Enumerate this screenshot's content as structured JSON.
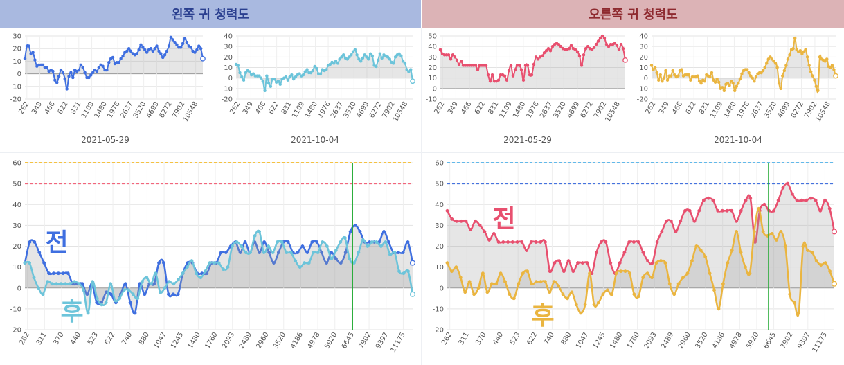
{
  "header": {
    "left_title": "왼쪽 귀 청력도",
    "right_title": "오른쪽 귀 청력도"
  },
  "colors": {
    "left_before": "#3f6fe0",
    "left_after": "#6cc4da",
    "right_before": "#e8506f",
    "right_after": "#eab540",
    "left_ref_orange": "#f5c242",
    "left_ref_red": "#f0506a",
    "right_ref_lightblue": "#62b9ea",
    "right_ref_blue": "#2b5fd9",
    "marker_green": "#22aa33",
    "fill_gray": "#cfcfcf"
  },
  "chart_data": [
    {
      "id": "left-small-1",
      "type": "line",
      "date_label": "2021-05-29",
      "ylim": [
        -20,
        30
      ],
      "yticks": [
        -20,
        -10,
        0,
        10,
        20,
        30
      ],
      "tick_labels": [
        "262",
        "349",
        "466",
        "622",
        "831",
        "1109",
        "1480",
        "1976",
        "2637",
        "3520",
        "4699",
        "6272",
        "7902",
        "10548"
      ],
      "series": [
        {
          "color_key": "left_before",
          "values": [
            12,
            22,
            22,
            16,
            17,
            11,
            6,
            7,
            7,
            7,
            5,
            5,
            2,
            3,
            2,
            -5,
            -7,
            -2,
            3,
            1,
            -4,
            -12,
            -2,
            1,
            -3,
            3,
            2,
            3,
            7,
            5,
            1,
            -3,
            -3,
            -1,
            1,
            3,
            2,
            5,
            7,
            6,
            3,
            3,
            9,
            12,
            13,
            8,
            9,
            9,
            12,
            14,
            17,
            18,
            20,
            18,
            16,
            15,
            16,
            19,
            23,
            21,
            19,
            17,
            19,
            20,
            18,
            20,
            22,
            18,
            16,
            13,
            15,
            18,
            22,
            29,
            27,
            25,
            23,
            21,
            21,
            24,
            28,
            25,
            22,
            21,
            18,
            17,
            19,
            22,
            20,
            12
          ]
        }
      ]
    },
    {
      "id": "left-small-2",
      "type": "line",
      "date_label": "2021-10-04",
      "ylim": [
        -20,
        40
      ],
      "yticks": [
        -20,
        -10,
        0,
        10,
        20,
        30,
        40
      ],
      "tick_labels": [
        "262",
        "349",
        "466",
        "622",
        "831",
        "1109",
        "1480",
        "1976",
        "2637",
        "3520",
        "4699",
        "6272",
        "7902",
        "10548"
      ],
      "series": [
        {
          "color_key": "left_after",
          "values": [
            13,
            12,
            5,
            1,
            -2,
            5,
            7,
            6,
            3,
            4,
            2,
            2,
            2,
            0,
            -3,
            -12,
            2,
            -5,
            -8,
            -1,
            -1,
            -4,
            -3,
            -6,
            -1,
            0,
            1,
            -2,
            1,
            3,
            -1,
            1,
            3,
            4,
            2,
            3,
            6,
            8,
            5,
            5,
            7,
            11,
            9,
            4,
            4,
            8,
            7,
            8,
            12,
            13,
            15,
            14,
            16,
            14,
            18,
            20,
            22,
            19,
            18,
            20,
            22,
            25,
            27,
            22,
            18,
            16,
            19,
            22,
            20,
            18,
            23,
            21,
            12,
            11,
            17,
            23,
            19,
            22,
            21,
            20,
            18,
            15,
            14,
            20,
            22,
            23,
            21,
            16,
            14,
            8,
            6,
            8,
            -3
          ]
        }
      ]
    },
    {
      "id": "right-small-1",
      "type": "line",
      "date_label": "2021-05-29",
      "ylim": [
        -10,
        50
      ],
      "yticks": [
        -10,
        0,
        10,
        20,
        30,
        40,
        50
      ],
      "tick_labels": [
        "262",
        "349",
        "466",
        "622",
        "831",
        "1109",
        "1480",
        "1976",
        "2637",
        "3520",
        "4699",
        "6272",
        "7902",
        "10548"
      ],
      "series": [
        {
          "color_key": "right_before",
          "values": [
            37,
            33,
            32,
            32,
            32,
            28,
            32,
            30,
            27,
            23,
            26,
            22,
            22,
            22,
            22,
            22,
            22,
            22,
            18,
            22,
            22,
            22,
            22,
            13,
            7,
            13,
            7,
            7,
            8,
            13,
            13,
            12,
            8,
            17,
            22,
            12,
            18,
            22,
            22,
            18,
            8,
            22,
            22,
            13,
            13,
            23,
            30,
            28,
            30,
            31,
            34,
            36,
            38,
            36,
            40,
            42,
            43,
            42,
            40,
            38,
            37,
            37,
            38,
            41,
            38,
            37,
            35,
            31,
            22,
            32,
            38,
            40,
            38,
            37,
            39,
            42,
            45,
            48,
            50,
            48,
            42,
            40,
            42,
            42,
            43,
            41,
            37,
            42,
            38,
            27
          ]
        }
      ]
    },
    {
      "id": "right-small-2",
      "type": "line",
      "date_label": "2021-10-04",
      "ylim": [
        -20,
        40
      ],
      "yticks": [
        -20,
        -10,
        0,
        10,
        20,
        30,
        40
      ],
      "tick_labels": [
        "262",
        "349",
        "466",
        "622",
        "831",
        "1109",
        "1480",
        "1976",
        "2637",
        "3520",
        "4699",
        "6272",
        "7902",
        "10548"
      ],
      "series": [
        {
          "color_key": "right_after",
          "values": [
            12,
            8,
            10,
            5,
            -2,
            3,
            -3,
            0,
            7,
            -2,
            2,
            2,
            7,
            3,
            1,
            2,
            7,
            8,
            2,
            3,
            3,
            3,
            -2,
            1,
            1,
            1,
            2,
            -3,
            -5,
            -2,
            -3,
            3,
            2,
            1,
            5,
            -2,
            -4,
            -1,
            -4,
            -10,
            -9,
            -12,
            -6,
            -5,
            -7,
            -3,
            -5,
            -12,
            -8,
            -5,
            -1,
            4,
            7,
            8,
            8,
            5,
            2,
            0,
            -3,
            1,
            4,
            5,
            5,
            7,
            10,
            14,
            18,
            20,
            18,
            16,
            14,
            10,
            -5,
            -10,
            2,
            7,
            12,
            18,
            22,
            27,
            28,
            38,
            27,
            25,
            26,
            23,
            25,
            27,
            20,
            12,
            6,
            2,
            -2,
            -8,
            -12,
            20,
            18,
            17,
            16,
            18,
            11,
            10,
            12,
            8,
            2
          ]
        }
      ]
    },
    {
      "id": "left-big",
      "type": "line",
      "ylim": [
        -20,
        60
      ],
      "yticks": [
        -20,
        -10,
        0,
        10,
        20,
        30,
        40,
        50,
        60
      ],
      "tick_labels": [
        "262",
        "311",
        "370",
        "440",
        "523",
        "622",
        "740",
        "880",
        "1047",
        "1245",
        "1480",
        "1760",
        "2093",
        "2489",
        "2960",
        "3520",
        "4186",
        "4978",
        "5920",
        "6645",
        "7902",
        "9397",
        "11175"
      ],
      "overlay_before": "전",
      "overlay_after": "후",
      "ref_lines": [
        {
          "value": 60,
          "color_key": "left_ref_orange"
        },
        {
          "value": 50,
          "color_key": "left_ref_red"
        }
      ],
      "marker_x_fraction": 0.845,
      "series": [
        {
          "color_key": "left_before",
          "values": [
            12,
            22,
            22,
            17,
            12,
            7,
            7,
            7,
            7,
            7,
            2,
            2,
            2,
            -3,
            2,
            -7,
            -7,
            -2,
            -3,
            -7,
            -3,
            2,
            -7,
            -12,
            2,
            -3,
            2,
            2,
            12,
            12,
            -3,
            -3,
            -3,
            7,
            12,
            12,
            7,
            7,
            7,
            12,
            12,
            17,
            17,
            20,
            22,
            17,
            22,
            17,
            22,
            17,
            22,
            17,
            12,
            17,
            22,
            22,
            17,
            17,
            20,
            17,
            22,
            22,
            17,
            12,
            17,
            14,
            12,
            17,
            27,
            30,
            27,
            22,
            22,
            22,
            22,
            27,
            22,
            17,
            17,
            17,
            22,
            12
          ]
        },
        {
          "color_key": "left_after",
          "values": [
            12,
            12,
            5,
            0,
            -3,
            3,
            2,
            2,
            2,
            2,
            2,
            3,
            2,
            -1,
            -12,
            3,
            -5,
            -8,
            -7,
            2,
            -6,
            -5,
            -1,
            -1,
            -3,
            -5,
            3,
            5,
            2,
            7,
            -2,
            0,
            3,
            2,
            4,
            7,
            10,
            13,
            7,
            5,
            8,
            12,
            12,
            12,
            9,
            10,
            20,
            22,
            20,
            17,
            17,
            25,
            27,
            17,
            20,
            17,
            22,
            22,
            17,
            17,
            13,
            10,
            12,
            12,
            17,
            17,
            22,
            20,
            14,
            18,
            22,
            24,
            14,
            12,
            17,
            23,
            20,
            22,
            22,
            20,
            22,
            16,
            17,
            8,
            7,
            8,
            -3
          ]
        }
      ]
    },
    {
      "id": "right-big",
      "type": "line",
      "ylim": [
        -20,
        60
      ],
      "yticks": [
        -20,
        -10,
        0,
        10,
        20,
        30,
        40,
        50,
        60
      ],
      "tick_labels": [
        "262",
        "311",
        "370",
        "440",
        "523",
        "622",
        "740",
        "880",
        "1047",
        "1245",
        "1480",
        "1760",
        "2093",
        "2489",
        "2960",
        "3520",
        "4186",
        "4978",
        "5920",
        "6645",
        "7902",
        "9397",
        "11175"
      ],
      "overlay_before": "전",
      "overlay_after": "후",
      "ref_lines": [
        {
          "value": 60,
          "color_key": "right_ref_lightblue"
        },
        {
          "value": 50,
          "color_key": "right_ref_blue"
        }
      ],
      "marker_x_fraction": 0.83,
      "series": [
        {
          "color_key": "right_before",
          "values": [
            37,
            33,
            32,
            32,
            32,
            28,
            32,
            30,
            27,
            23,
            26,
            22,
            22,
            22,
            22,
            22,
            22,
            18,
            22,
            22,
            22,
            22,
            8,
            12,
            13,
            8,
            13,
            8,
            12,
            12,
            12,
            7,
            17,
            22,
            22,
            12,
            7,
            12,
            17,
            22,
            22,
            22,
            17,
            13,
            12,
            22,
            27,
            32,
            32,
            27,
            32,
            37,
            37,
            32,
            37,
            42,
            43,
            42,
            37,
            37,
            37,
            37,
            32,
            37,
            42,
            43,
            22,
            37,
            40,
            37,
            37,
            42,
            48,
            50,
            45,
            42,
            42,
            42,
            43,
            42,
            37,
            42,
            38,
            27
          ]
        },
        {
          "color_key": "right_after",
          "values": [
            12,
            8,
            10,
            5,
            -2,
            3,
            -3,
            0,
            7,
            -2,
            2,
            2,
            7,
            3,
            -3,
            -5,
            2,
            7,
            8,
            2,
            3,
            3,
            3,
            -2,
            3,
            1,
            -3,
            -5,
            -2,
            -8,
            -12,
            -8,
            7,
            -8,
            -7,
            -3,
            -1,
            -3,
            7,
            8,
            8,
            7,
            -3,
            -4,
            5,
            7,
            5,
            12,
            13,
            12,
            2,
            -3,
            2,
            5,
            7,
            13,
            20,
            18,
            15,
            7,
            -1,
            -10,
            2,
            12,
            18,
            27,
            17,
            10,
            7,
            27,
            38,
            27,
            25,
            26,
            23,
            27,
            20,
            -3,
            -7,
            -12,
            20,
            18,
            17,
            13,
            11,
            12,
            8,
            2
          ]
        }
      ]
    }
  ]
}
